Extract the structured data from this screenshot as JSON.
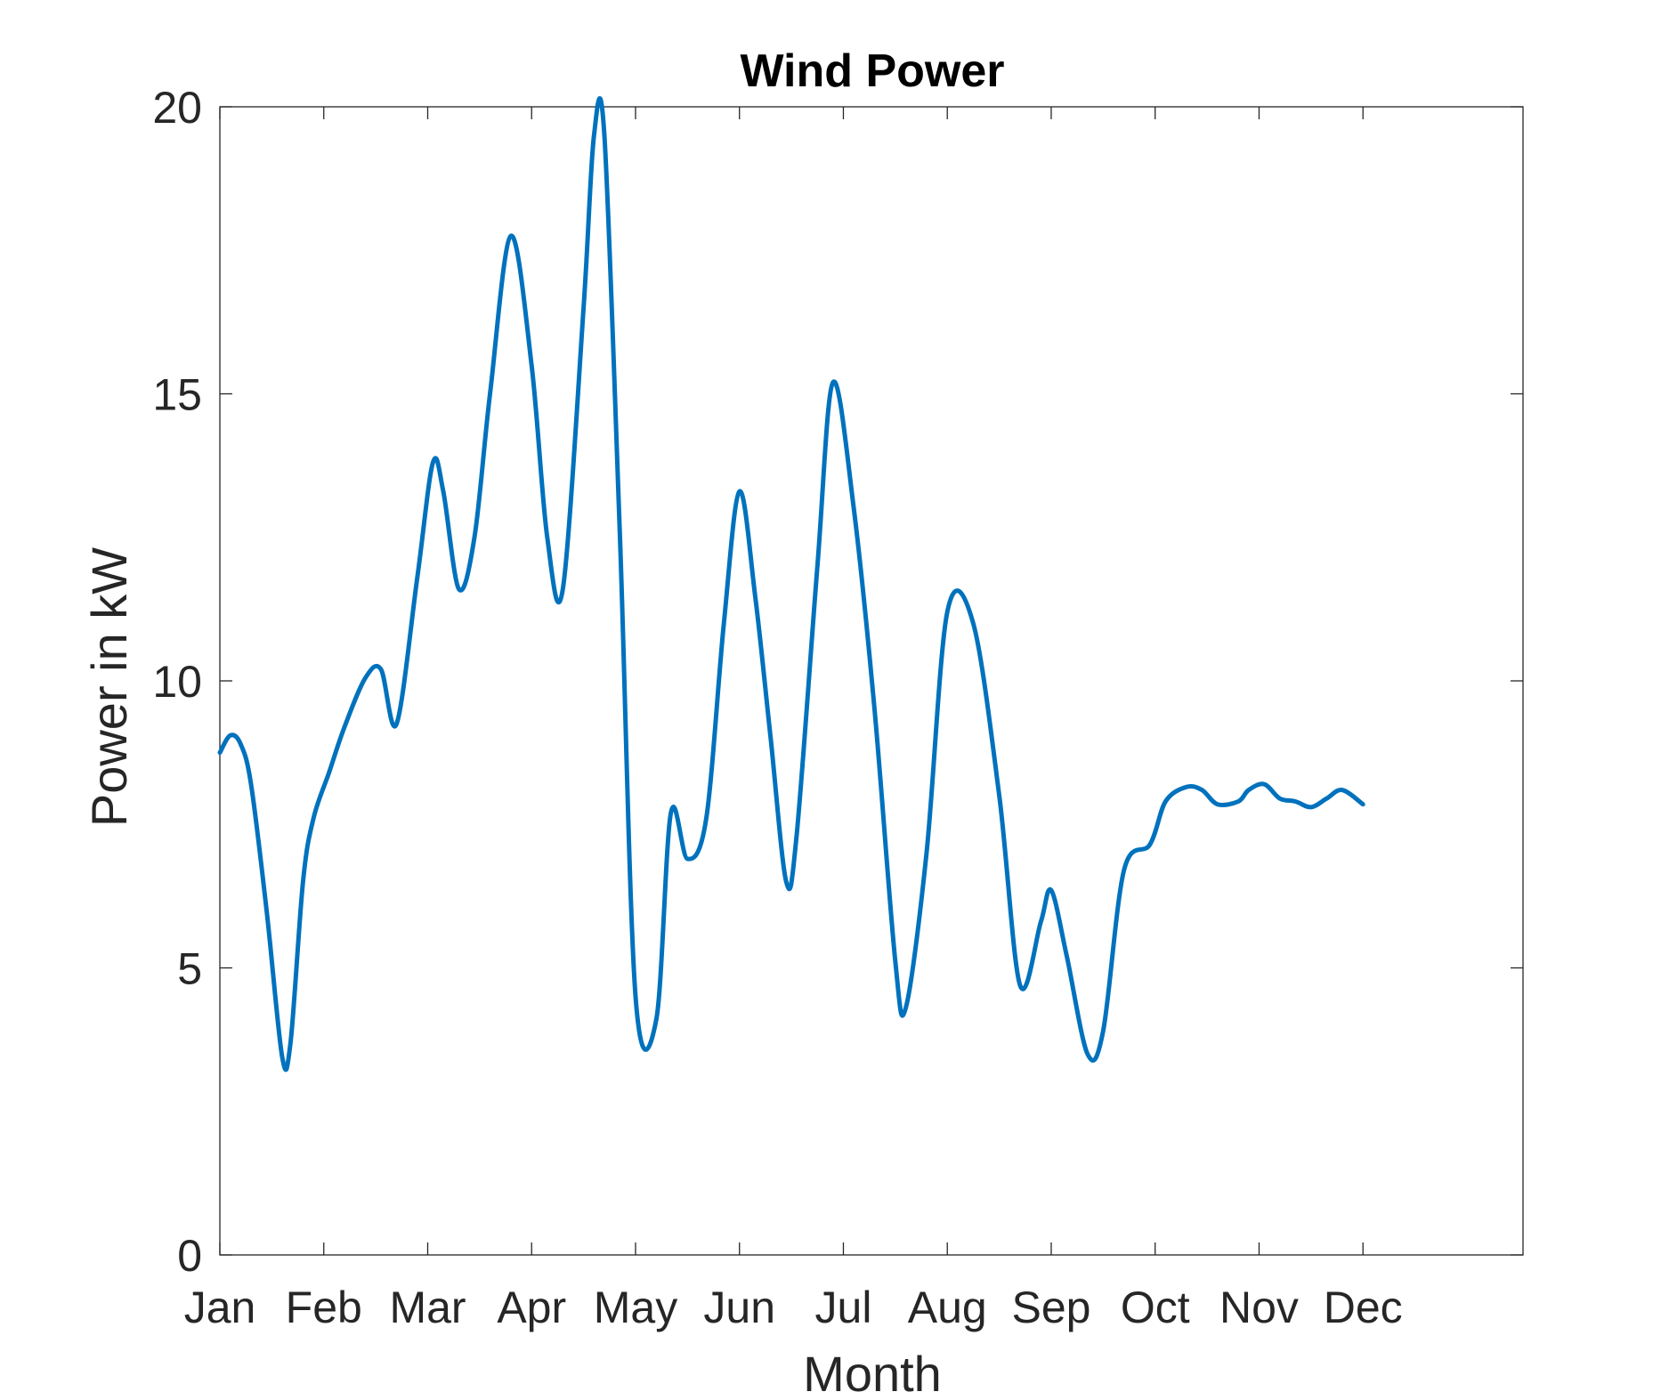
{
  "chart_data": {
    "type": "line",
    "title": "Wind Power",
    "xlabel": "Month",
    "ylabel": "Power in kW",
    "categories": [
      "Jan",
      "Feb",
      "Mar",
      "Apr",
      "May",
      "Jun",
      "Jul",
      "Aug",
      "Sep",
      "Oct",
      "Nov",
      "Dec"
    ],
    "xlim": [
      0,
      12.54
    ],
    "ylim": [
      0,
      20
    ],
    "yticks": [
      0,
      5,
      10,
      15,
      20
    ],
    "grid": false,
    "box": true,
    "series": [
      {
        "color": "#0072BD",
        "x": [
          0.0,
          0.1,
          0.2,
          0.3,
          0.45,
          0.6,
          0.68,
          0.8,
          0.9,
          1.05,
          1.2,
          1.4,
          1.55,
          1.7,
          1.9,
          2.05,
          2.15,
          2.3,
          2.45,
          2.6,
          2.8,
          3.0,
          3.15,
          3.3,
          3.5,
          3.6,
          3.7,
          3.85,
          4.0,
          4.2,
          4.34,
          4.5,
          4.68,
          4.85,
          5.0,
          5.15,
          5.3,
          5.45,
          5.55,
          5.75,
          5.9,
          6.1,
          6.3,
          6.5,
          6.6,
          6.8,
          7.0,
          7.25,
          7.5,
          7.7,
          7.9,
          8.0,
          8.15,
          8.35,
          8.5,
          8.7,
          8.95,
          9.1,
          9.3,
          9.45,
          9.6,
          9.8,
          9.9,
          10.05,
          10.2,
          10.35,
          10.5,
          10.65,
          10.8,
          11.0
        ],
        "values": [
          8.75,
          9.05,
          8.9,
          8.2,
          6.0,
          3.45,
          3.7,
          6.5,
          7.6,
          8.4,
          9.2,
          10.05,
          10.2,
          9.25,
          11.8,
          13.8,
          13.3,
          11.6,
          12.5,
          15.0,
          17.75,
          15.5,
          12.5,
          11.6,
          16.5,
          19.5,
          19.5,
          12.5,
          4.5,
          4.1,
          7.7,
          6.9,
          7.6,
          11.0,
          13.3,
          11.5,
          9.0,
          6.5,
          7.3,
          12.0,
          15.2,
          13.0,
          9.5,
          5.1,
          4.3,
          7.0,
          11.2,
          11.0,
          8.0,
          4.7,
          5.8,
          6.35,
          5.2,
          3.5,
          3.9,
          6.7,
          7.15,
          7.9,
          8.15,
          8.1,
          7.85,
          7.9,
          8.1,
          8.2,
          7.95,
          7.9,
          7.8,
          7.95,
          8.1,
          7.85
        ]
      }
    ]
  }
}
